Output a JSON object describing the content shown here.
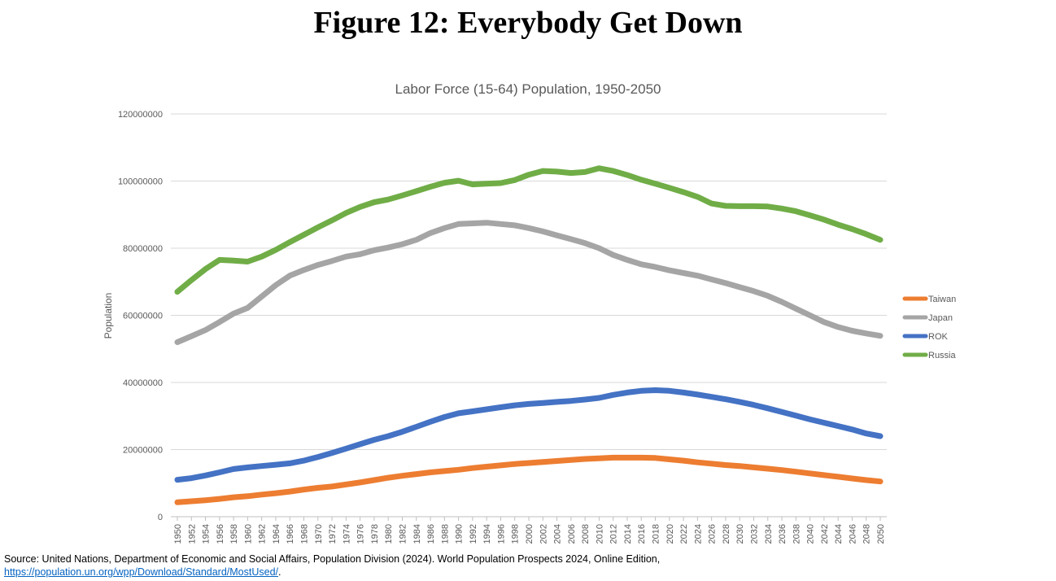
{
  "figure_title": "Figure 12: Everybody Get Down",
  "source_text": "Source: United Nations, Department of Economic and Social Affairs, Population Division (2024). World Population Prospects 2024, Online Edition,",
  "source_link": "https://population.un.org/wpp/Download/Standard/MostUsed/",
  "source_suffix": ".",
  "chart_data": {
    "type": "line",
    "title": "Labor Force (15-64) Population, 1950-2050",
    "xlabel": "",
    "ylabel": "Population",
    "ylim": [
      0,
      120000000
    ],
    "yticks": [
      0,
      20000000,
      40000000,
      60000000,
      80000000,
      100000000,
      120000000
    ],
    "ytick_labels": [
      "0",
      "20000000",
      "40000000",
      "60000000",
      "80000000",
      "100000000",
      "120000000"
    ],
    "x_tick_labels": [
      "1950",
      "1952",
      "1954",
      "1956",
      "1958",
      "1960",
      "1962",
      "1964",
      "1966",
      "1968",
      "1970",
      "1972",
      "1974",
      "1976",
      "1978",
      "1980",
      "1982",
      "1984",
      "1986",
      "1988",
      "1990",
      "1992",
      "1994",
      "1996",
      "1998",
      "2000",
      "2002",
      "2004",
      "2006",
      "2008",
      "2010",
      "2012",
      "2014",
      "2016",
      "2018",
      "2020",
      "2022",
      "2024",
      "2026",
      "2028",
      "2030",
      "2032",
      "2034",
      "2036",
      "2038",
      "2040",
      "2042",
      "2044",
      "2046",
      "2048",
      "2050"
    ],
    "grid": true,
    "legend_position": "right",
    "x": [
      1950,
      1952,
      1954,
      1956,
      1958,
      1960,
      1962,
      1964,
      1966,
      1968,
      1970,
      1972,
      1974,
      1976,
      1978,
      1980,
      1982,
      1984,
      1986,
      1988,
      1990,
      1992,
      1994,
      1996,
      1998,
      2000,
      2002,
      2004,
      2006,
      2008,
      2010,
      2012,
      2014,
      2016,
      2018,
      2020,
      2022,
      2024,
      2026,
      2028,
      2030,
      2032,
      2034,
      2036,
      2038,
      2040,
      2042,
      2044,
      2046,
      2048,
      2050
    ],
    "series": [
      {
        "name": "Taiwan",
        "color": "#ed7d31",
        "values": [
          4300000,
          4600000,
          4900000,
          5300000,
          5800000,
          6100000,
          6600000,
          7000000,
          7500000,
          8100000,
          8600000,
          9000000,
          9600000,
          10200000,
          10900000,
          11600000,
          12200000,
          12700000,
          13200000,
          13600000,
          14000000,
          14500000,
          14900000,
          15300000,
          15700000,
          16000000,
          16300000,
          16600000,
          16900000,
          17200000,
          17400000,
          17600000,
          17600000,
          17600000,
          17500000,
          17100000,
          16700000,
          16200000,
          15800000,
          15400000,
          15100000,
          14700000,
          14300000,
          13900000,
          13400000,
          12900000,
          12400000,
          11900000,
          11400000,
          10900000,
          10500000
        ]
      },
      {
        "name": "Japan",
        "color": "#a5a5a5",
        "values": [
          52000000,
          53800000,
          55600000,
          58000000,
          60500000,
          62200000,
          65600000,
          69000000,
          71800000,
          73500000,
          75000000,
          76200000,
          77500000,
          78200000,
          79400000,
          80200000,
          81200000,
          82500000,
          84500000,
          86000000,
          87200000,
          87400000,
          87600000,
          87200000,
          86800000,
          86000000,
          85000000,
          83800000,
          82700000,
          81500000,
          80000000,
          78000000,
          76500000,
          75200000,
          74400000,
          73400000,
          72600000,
          71800000,
          70700000,
          69600000,
          68400000,
          67200000,
          65800000,
          64000000,
          62000000,
          60000000,
          58000000,
          56500000,
          55400000,
          54600000,
          53900000
        ]
      },
      {
        "name": "ROK",
        "color": "#4472c4",
        "values": [
          11000000,
          11500000,
          12300000,
          13200000,
          14200000,
          14700000,
          15100000,
          15500000,
          15900000,
          16700000,
          17800000,
          19000000,
          20300000,
          21600000,
          22900000,
          24000000,
          25300000,
          26800000,
          28300000,
          29700000,
          30800000,
          31400000,
          32000000,
          32600000,
          33200000,
          33600000,
          33900000,
          34200000,
          34500000,
          34900000,
          35400000,
          36300000,
          37000000,
          37500000,
          37700000,
          37500000,
          37000000,
          36400000,
          35700000,
          35000000,
          34200000,
          33300000,
          32300000,
          31200000,
          30100000,
          29000000,
          28000000,
          27000000,
          26000000,
          24800000,
          24000000
        ]
      },
      {
        "name": "Russia",
        "color": "#70ad47",
        "values": [
          67000000,
          70500000,
          73800000,
          76500000,
          76300000,
          76000000,
          77500000,
          79500000,
          81800000,
          84000000,
          86200000,
          88300000,
          90500000,
          92300000,
          93700000,
          94500000,
          95700000,
          97000000,
          98300000,
          99500000,
          100100000,
          99000000,
          99200000,
          99400000,
          100300000,
          101900000,
          103000000,
          102800000,
          102400000,
          102700000,
          103800000,
          103000000,
          101800000,
          100400000,
          99200000,
          98000000,
          96700000,
          95300000,
          93300000,
          92600000,
          92500000,
          92500000,
          92400000,
          91800000,
          91000000,
          89800000,
          88500000,
          87000000,
          85700000,
          84200000,
          82500000
        ]
      }
    ]
  }
}
